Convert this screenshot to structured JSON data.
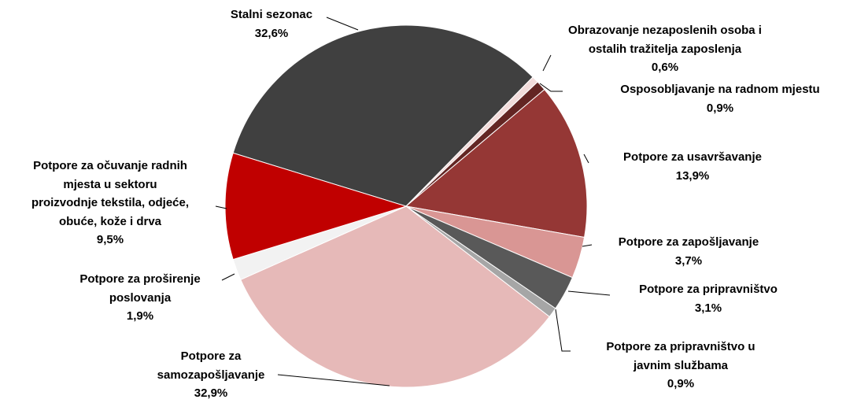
{
  "chart_data": {
    "type": "pie",
    "categories": [
      "Stalni sezonac",
      "Obrazovanje nezaposlenih osoba i\nostalih tražitelja zaposlenja",
      "Osposobljavanje na radnom mjestu",
      "Potpore za usavršavanje",
      "Potpore za zapošljavanje",
      "Potpore za pripravništvo",
      "Potpore za pripravništvo u\njavnim službama",
      "Potpore za\nsamozapošljavanje",
      "Potpore za proširenje\nposlovanja",
      "Potpore za očuvanje radnih\nmjesta u sektoru\nproizvodnje tekstila, odjeće,\nobuće, kože i drva"
    ],
    "values": [
      32.6,
      0.6,
      0.9,
      13.9,
      3.7,
      3.1,
      0.9,
      32.9,
      1.9,
      9.5
    ],
    "value_labels": [
      "32,6%",
      "0,6%",
      "0,9%",
      "13,9%",
      "3,7%",
      "3,1%",
      "0,9%",
      "32,9%",
      "1,9%",
      "9,5%"
    ],
    "colors": [
      "#404040",
      "#f2dcdb",
      "#632523",
      "#953735",
      "#d99694",
      "#595959",
      "#a6a6a6",
      "#e6b9b8",
      "#f2f2f2",
      "#c00000"
    ]
  }
}
